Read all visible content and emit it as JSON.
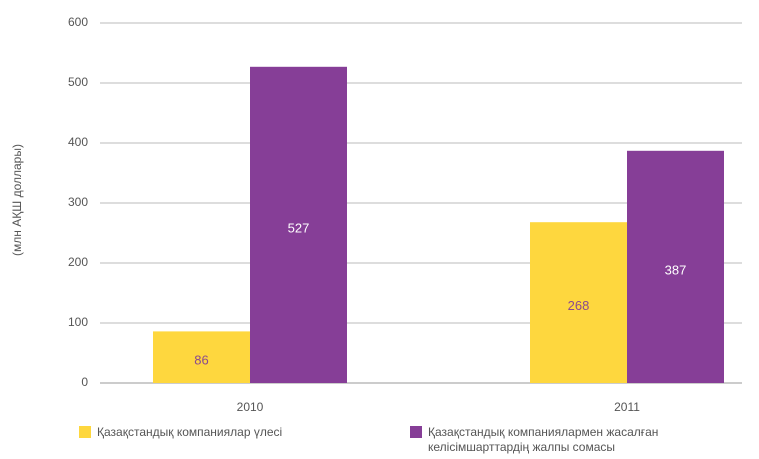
{
  "chart_data": {
    "type": "bar",
    "y_label": "(млн АҚШ доллары)",
    "categories": [
      "2010",
      "2011"
    ],
    "series": [
      {
        "name": "Қазақстандық компаниялар үлесі",
        "color": "#fed73e",
        "values": [
          86,
          268
        ]
      },
      {
        "name": "Қазақстандық компаниялармен жасалған келісімшарттардің жалпы сомасы",
        "color": "#863e97",
        "values": [
          527,
          387
        ]
      }
    ],
    "ylim": [
      0,
      600
    ],
    "yticks": [
      0,
      100,
      200,
      300,
      400,
      500,
      600
    ],
    "grid": true
  }
}
